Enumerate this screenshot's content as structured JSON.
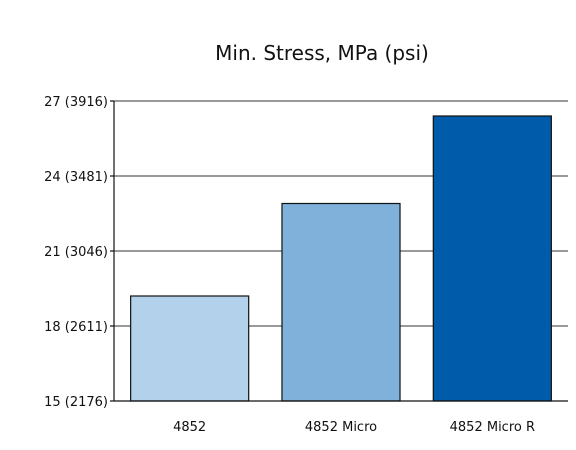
{
  "chart_data": {
    "type": "bar",
    "title": "Min. Stress, MPa (psi)",
    "xlabel": "",
    "ylabel": "",
    "categories": [
      "4852",
      "4852 Micro",
      "4852 Micro R"
    ],
    "values": [
      19.2,
      22.9,
      26.4
    ],
    "colors": [
      "#b3d1ea",
      "#7fb1da",
      "#005cab"
    ],
    "ylim": [
      15,
      27
    ],
    "yticks": [
      {
        "value": 15,
        "label": "15 (2176)"
      },
      {
        "value": 18,
        "label": "18 (2611)"
      },
      {
        "value": 21,
        "label": "21 (3046)"
      },
      {
        "value": 24,
        "label": "24 (3481)"
      },
      {
        "value": 27,
        "label": "27 (3916)"
      }
    ],
    "grid": true,
    "legend": "none"
  }
}
